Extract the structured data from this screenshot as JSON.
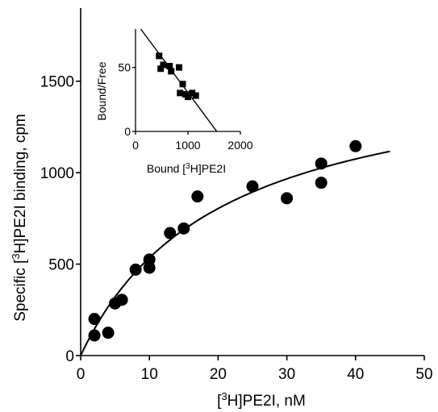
{
  "chart_data": [
    {
      "type": "scatter",
      "role": "main",
      "xlabel_parts": [
        "[",
        "3",
        "H]PE2I, nM"
      ],
      "ylabel_parts": [
        "Specific [",
        "3",
        "H]PE2I binding, cpm"
      ],
      "xlim": [
        0,
        50
      ],
      "ylim": [
        0,
        1900
      ],
      "xticks": [
        0,
        10,
        20,
        30,
        40,
        50
      ],
      "yticks": [
        0,
        500,
        1000,
        1500
      ],
      "grid": false,
      "legend": "none",
      "series": [
        {
          "points": [
            [
              2,
              110
            ],
            [
              2,
              200
            ],
            [
              4,
              125
            ],
            [
              5,
              285
            ],
            [
              6,
              305
            ],
            [
              8,
              470
            ],
            [
              10,
              525
            ],
            [
              10,
              480
            ],
            [
              13,
              670
            ],
            [
              15,
              695
            ],
            [
              17,
              870
            ],
            [
              25,
              925
            ],
            [
              30,
              860
            ],
            [
              35,
              1050
            ],
            [
              35,
              945
            ],
            [
              40,
              1145
            ]
          ]
        }
      ],
      "fit_curve": {
        "model": "Bmax*x/(Kd+x)",
        "Bmax": 1620,
        "Kd": 20.3,
        "x_range": [
          0,
          45
        ]
      }
    },
    {
      "type": "scatter",
      "role": "inset",
      "xlabel_parts": [
        "Bound [",
        "3",
        "H]PE2I"
      ],
      "ylabel": "Bound/Free",
      "xlim": [
        0,
        2000
      ],
      "ylim": [
        0,
        80
      ],
      "xticks": [
        0,
        1000,
        2000
      ],
      "yticks": [
        0,
        50
      ],
      "grid": false,
      "legend": "none",
      "series": [
        {
          "points": [
            [
              450,
              59
            ],
            [
              480,
              49
            ],
            [
              530,
              52
            ],
            [
              650,
              51
            ],
            [
              680,
              47
            ],
            [
              830,
              50
            ],
            [
              850,
              30
            ],
            [
              900,
              37
            ],
            [
              950,
              29
            ],
            [
              1000,
              27
            ],
            [
              1080,
              30
            ],
            [
              1150,
              28
            ]
          ]
        }
      ],
      "fit_line": {
        "x_range": [
          100,
          1550
        ],
        "y_range": [
          80,
          0
        ]
      }
    }
  ]
}
